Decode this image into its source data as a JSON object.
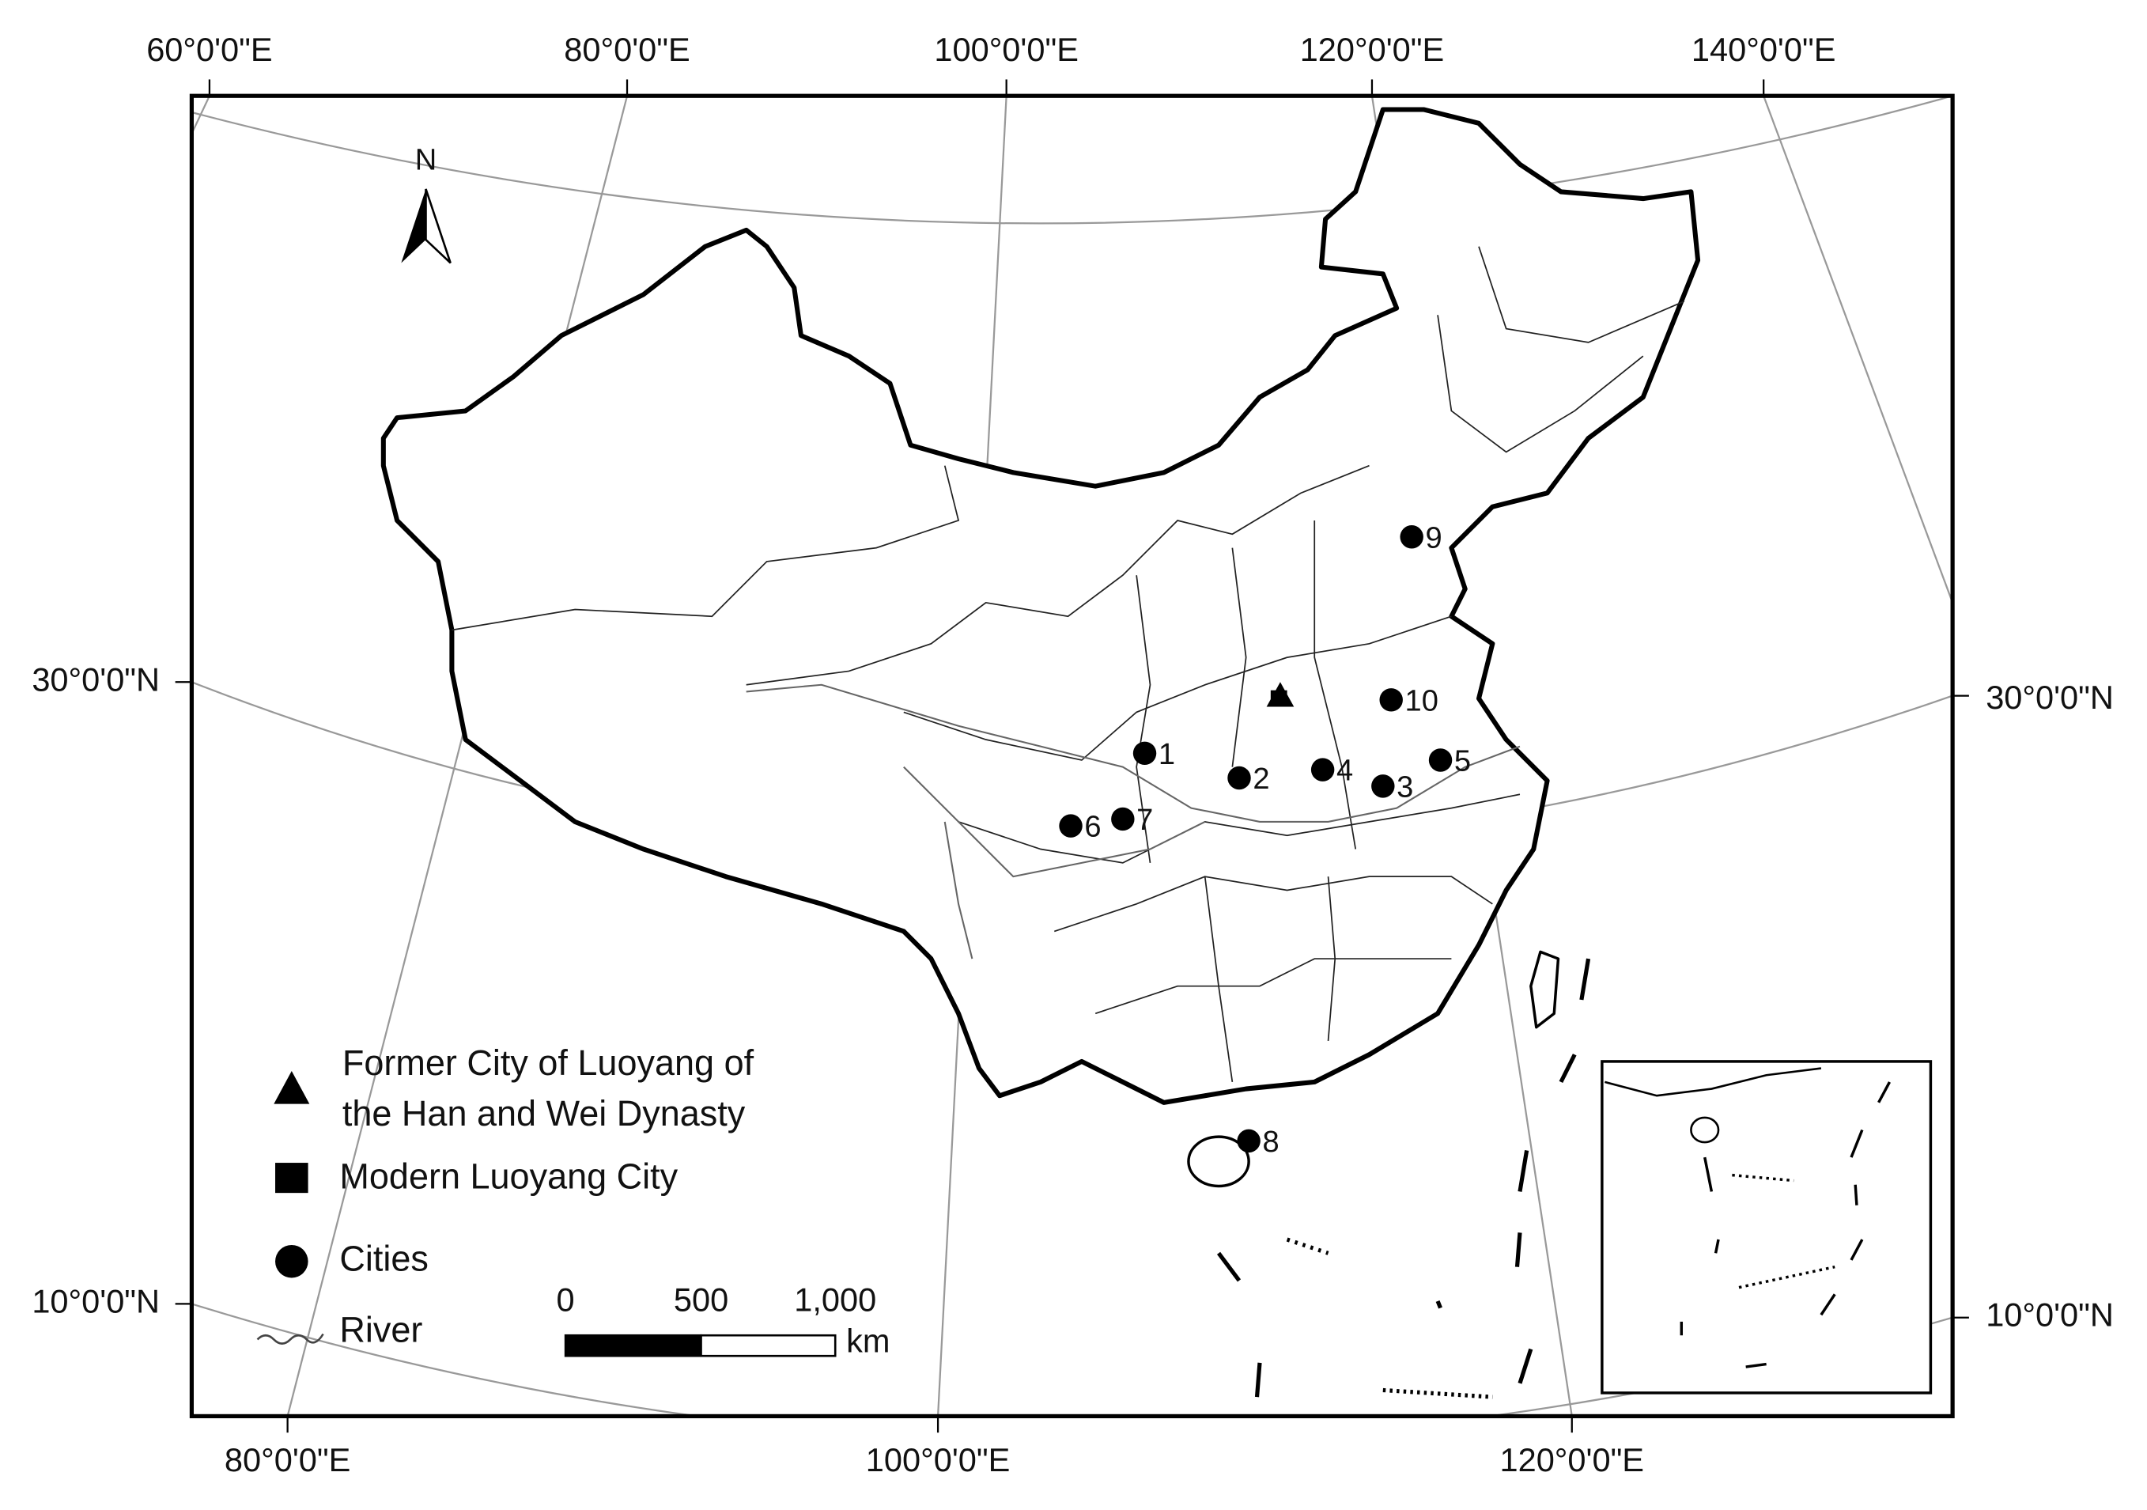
{
  "graticule": {
    "top": [
      "60°0'0\"E",
      "80°0'0\"E",
      "100°0'0\"E",
      "120°0'0\"E",
      "140°0'0\"E"
    ],
    "bottom": [
      "80°0'0\"E",
      "100°0'0\"E",
      "120°0'0\"E"
    ],
    "left": [
      "30°0'0\"N",
      "10°0'0\"N"
    ],
    "right": [
      "30°0'0\"N",
      "10°0'0\"N"
    ]
  },
  "north_arrow": "N",
  "cities": [
    "1",
    "2",
    "3",
    "4",
    "5",
    "6",
    "7",
    "8",
    "9",
    "10"
  ],
  "legend": {
    "former_city": [
      "Former City of Luoyang of",
      "the Han and Wei Dynasty"
    ],
    "modern_city": "Modern Luoyang City",
    "cities": "Cities",
    "river": "River"
  },
  "scale_bar": {
    "labels": [
      "0",
      "500",
      "1,000"
    ],
    "unit": "km"
  }
}
